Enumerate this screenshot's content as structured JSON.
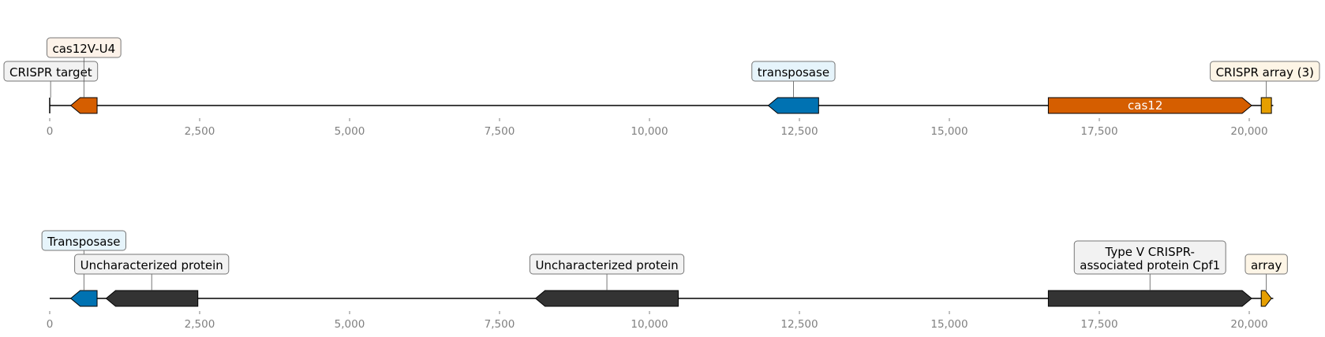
{
  "colors": {
    "cas_orange": "#d55e00",
    "transposase_blue": "#0072b2",
    "array_yellow": "#e69f00",
    "uncharacterized_dark": "#333333",
    "label_bg_light_orange": "#fdf2e9",
    "label_bg_light_blue": "#e6f4fb",
    "label_bg_light_gray": "#f2f2f2",
    "label_bg_light_yellow": "#fdf5e6",
    "axis_text": "#808080"
  },
  "tracks": [
    {
      "axis": {
        "min": 0,
        "max": 20400,
        "ticks": [
          {
            "value": 0,
            "label": "0"
          },
          {
            "value": 2500,
            "label": "2,500"
          },
          {
            "value": 5000,
            "label": "5,000"
          },
          {
            "value": 7500,
            "label": "7,500"
          },
          {
            "value": 10000,
            "label": "10,000"
          },
          {
            "value": 12500,
            "label": "12,500"
          },
          {
            "value": 15000,
            "label": "15,000"
          },
          {
            "value": 17500,
            "label": "17,500"
          },
          {
            "value": 20000,
            "label": "20,000"
          }
        ]
      },
      "features": [
        {
          "id": "crispr-target",
          "start": 0,
          "end": 30,
          "strand": 0,
          "color": "#000000",
          "type": "line"
        },
        {
          "id": "cas12v-u4",
          "start": 350,
          "end": 790,
          "strand": -1,
          "color": "#d55e00"
        },
        {
          "id": "transposase",
          "start": 11980,
          "end": 12820,
          "strand": -1,
          "color": "#0072b2"
        },
        {
          "id": "cas12",
          "start": 16650,
          "end": 20040,
          "strand": 1,
          "color": "#d55e00",
          "inline_label": "cas12"
        },
        {
          "id": "crispr-array-3",
          "start": 20200,
          "end": 20370,
          "strand": 0,
          "color": "#e69f00"
        }
      ],
      "labels": [
        {
          "text": "CRISPR target",
          "lines": [
            "CRISPR target"
          ],
          "anchor": 15,
          "bg": "#f2f2f2",
          "level": 1
        },
        {
          "text": "cas12V-U4",
          "lines": [
            "cas12V-U4"
          ],
          "anchor": 570,
          "bg": "#fdf2e9",
          "level": 2
        },
        {
          "text": "transposase",
          "lines": [
            "transposase"
          ],
          "anchor": 12400,
          "bg": "#e6f4fb",
          "level": 1
        },
        {
          "text": "CRISPR array (3)",
          "lines": [
            "CRISPR array (3)"
          ],
          "anchor": 20285,
          "bg": "#fdf5e6",
          "level": 1
        }
      ]
    },
    {
      "axis": {
        "min": 0,
        "max": 20400,
        "ticks": [
          {
            "value": 0,
            "label": "0"
          },
          {
            "value": 2500,
            "label": "2,500"
          },
          {
            "value": 5000,
            "label": "5,000"
          },
          {
            "value": 7500,
            "label": "7,500"
          },
          {
            "value": 10000,
            "label": "10,000"
          },
          {
            "value": 12500,
            "label": "12,500"
          },
          {
            "value": 15000,
            "label": "15,000"
          },
          {
            "value": 17500,
            "label": "17,500"
          },
          {
            "value": 20000,
            "label": "20,000"
          }
        ]
      },
      "features": [
        {
          "id": "transposase-2",
          "start": 350,
          "end": 790,
          "strand": -1,
          "color": "#0072b2"
        },
        {
          "id": "uncharacterized-1",
          "start": 940,
          "end": 2470,
          "strand": -1,
          "color": "#333333"
        },
        {
          "id": "uncharacterized-2",
          "start": 8100,
          "end": 10480,
          "strand": -1,
          "color": "#333333"
        },
        {
          "id": "cpf1",
          "start": 16650,
          "end": 20040,
          "strand": 1,
          "color": "#333333"
        },
        {
          "id": "array",
          "start": 20200,
          "end": 20370,
          "strand": 1,
          "color": "#e69f00"
        }
      ],
      "labels": [
        {
          "text": "Transposase",
          "lines": [
            "Transposase"
          ],
          "anchor": 570,
          "bg": "#e6f4fb",
          "level": 2
        },
        {
          "text": "Uncharacterized protein",
          "lines": [
            "Uncharacterized protein"
          ],
          "anchor": 1700,
          "bg": "#f2f2f2",
          "level": 1
        },
        {
          "text": "Uncharacterized protein",
          "lines": [
            "Uncharacterized protein"
          ],
          "anchor": 9290,
          "bg": "#f2f2f2",
          "level": 1
        },
        {
          "text": "Type V CRISPR-associated protein Cpf1",
          "lines": [
            "Type V CRISPR-",
            "associated protein Cpf1"
          ],
          "anchor": 18345,
          "bg": "#f2f2f2",
          "level": 1
        },
        {
          "text": "array",
          "lines": [
            "array"
          ],
          "anchor": 20285,
          "bg": "#fdf5e6",
          "level": 1
        }
      ]
    }
  ]
}
